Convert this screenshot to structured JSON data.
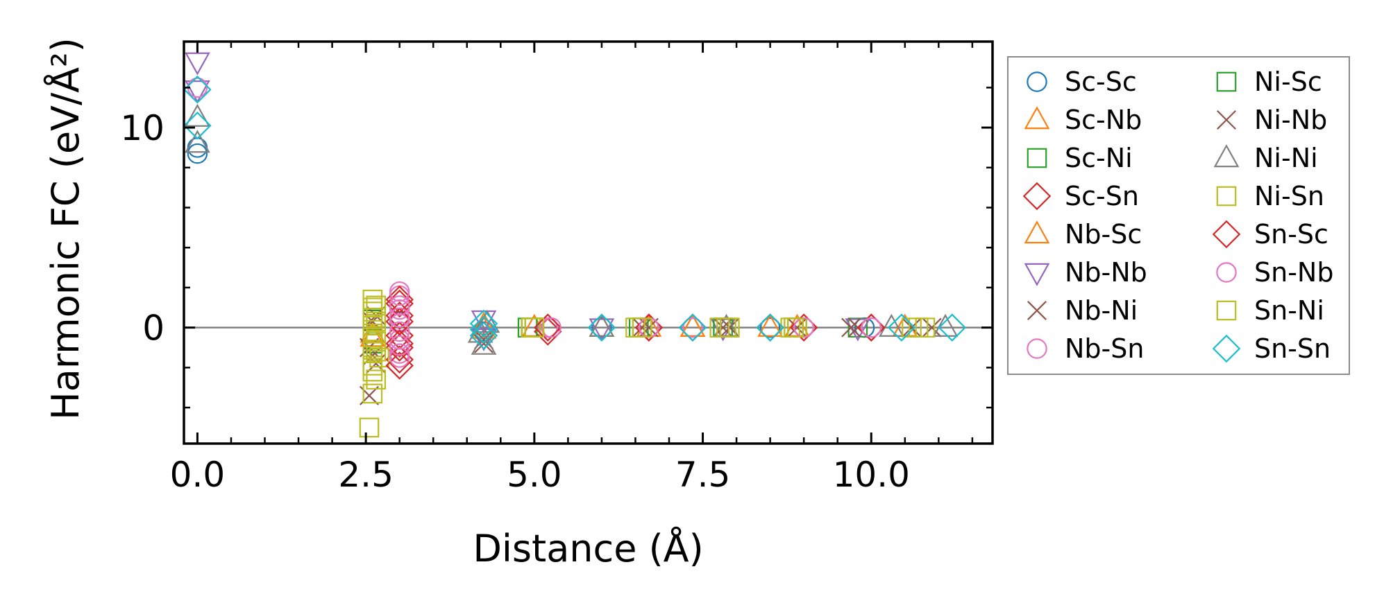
{
  "chart_data": {
    "type": "scatter",
    "title": "",
    "xlabel": "Distance (Å)",
    "ylabel": "Harmonic FC (eV/Å²)",
    "xlim": [
      -0.2,
      11.8
    ],
    "ylim": [
      -5.8,
      14.3
    ],
    "x_ticks": [
      0.0,
      2.5,
      5.0,
      7.5,
      10.0
    ],
    "x_tick_labels": [
      "0.0",
      "2.5",
      "5.0",
      "7.5",
      "10.0"
    ],
    "y_ticks": [
      0,
      10
    ],
    "y_tick_labels": [
      "0",
      "10"
    ],
    "zero_line": 0,
    "grid": false,
    "legend_position": "right",
    "series": [
      {
        "name": "Sc-Sc",
        "marker": "circle",
        "color": "#1f77b4",
        "points": [
          [
            0.0,
            8.7
          ],
          [
            0.0,
            9.0
          ],
          [
            3.0,
            0.3
          ],
          [
            4.25,
            -0.2
          ],
          [
            5.2,
            0.0
          ],
          [
            6.0,
            0.0
          ],
          [
            7.35,
            0.0
          ],
          [
            8.5,
            0.0
          ],
          [
            9.9,
            0.0
          ]
        ]
      },
      {
        "name": "Sc-Nb",
        "marker": "triangle-up",
        "color": "#ff7f0e",
        "points": [
          [
            2.6,
            -0.5
          ],
          [
            4.25,
            -0.1
          ],
          [
            5.0,
            0.0
          ],
          [
            6.7,
            0.0
          ],
          [
            7.35,
            0.0
          ],
          [
            8.9,
            0.0
          ],
          [
            10.5,
            0.0
          ]
        ]
      },
      {
        "name": "Sc-Ni",
        "marker": "square",
        "color": "#2ca02c",
        "points": [
          [
            2.6,
            -0.8
          ],
          [
            2.6,
            0.4
          ],
          [
            4.95,
            0.0
          ],
          [
            5.0,
            0.0
          ],
          [
            6.6,
            0.0
          ],
          [
            7.8,
            0.0
          ],
          [
            8.9,
            0.0
          ],
          [
            9.8,
            0.0
          ]
        ]
      },
      {
        "name": "Sc-Sn",
        "marker": "diamond",
        "color": "#d62728",
        "points": [
          [
            3.0,
            1.2
          ],
          [
            3.0,
            0.6
          ],
          [
            3.0,
            -0.4
          ],
          [
            3.0,
            -1.0
          ],
          [
            3.0,
            -1.6
          ],
          [
            5.2,
            -0.2
          ],
          [
            6.7,
            0.0
          ],
          [
            7.35,
            0.0
          ],
          [
            9.0,
            0.0
          ],
          [
            10.0,
            0.0
          ]
        ]
      },
      {
        "name": "Nb-Sc",
        "marker": "triangle-up",
        "color": "#ff7f0e",
        "points": [
          [
            2.6,
            -0.3
          ],
          [
            4.25,
            0.1
          ],
          [
            6.0,
            0.0
          ],
          [
            7.35,
            0.0
          ],
          [
            8.5,
            0.0
          ],
          [
            10.5,
            0.0
          ]
        ]
      },
      {
        "name": "Nb-Nb",
        "marker": "triangle-down",
        "color": "#9467bd",
        "points": [
          [
            0.0,
            13.3
          ],
          [
            0.0,
            11.9
          ],
          [
            4.25,
            0.4
          ],
          [
            4.25,
            -0.5
          ],
          [
            6.0,
            0.0
          ],
          [
            7.8,
            0.0
          ],
          [
            9.8,
            0.0
          ]
        ]
      },
      {
        "name": "Nb-Ni",
        "marker": "x",
        "color": "#8c564b",
        "points": [
          [
            2.55,
            -3.4
          ],
          [
            2.55,
            -1.0
          ],
          [
            2.65,
            0.6
          ],
          [
            2.65,
            -1.8
          ],
          [
            4.25,
            -0.8
          ],
          [
            6.6,
            0.0
          ],
          [
            7.8,
            0.0
          ],
          [
            8.9,
            0.0
          ],
          [
            9.8,
            0.0
          ],
          [
            10.9,
            0.0
          ]
        ]
      },
      {
        "name": "Nb-Sn",
        "marker": "circle",
        "color": "#e377c2",
        "points": [
          [
            0.0,
            12.0
          ],
          [
            3.0,
            1.6
          ],
          [
            3.0,
            0.9
          ],
          [
            3.0,
            0.2
          ],
          [
            3.0,
            -0.6
          ],
          [
            3.0,
            -1.3
          ],
          [
            5.2,
            0.0
          ],
          [
            6.7,
            0.0
          ],
          [
            7.35,
            0.0
          ],
          [
            9.0,
            0.0
          ],
          [
            10.0,
            0.0
          ]
        ]
      },
      {
        "name": "Ni-Sc",
        "marker": "square",
        "color": "#2ca02c",
        "points": [
          [
            2.6,
            -0.6
          ],
          [
            4.95,
            0.0
          ],
          [
            4.9,
            0.0
          ],
          [
            6.55,
            0.0
          ],
          [
            7.8,
            0.0
          ],
          [
            8.85,
            0.0
          ]
        ]
      },
      {
        "name": "Ni-Nb",
        "marker": "x",
        "color": "#8c564b",
        "points": [
          [
            2.6,
            -1.4
          ],
          [
            2.6,
            0.3
          ],
          [
            4.25,
            -0.6
          ],
          [
            6.7,
            0.0
          ],
          [
            7.9,
            0.0
          ],
          [
            9.7,
            0.0
          ],
          [
            10.6,
            0.0
          ]
        ]
      },
      {
        "name": "Ni-Ni",
        "marker": "triangle-up",
        "color": "#7f7f7f",
        "points": [
          [
            0.0,
            9.2
          ],
          [
            0.0,
            10.5
          ],
          [
            4.2,
            -0.3
          ],
          [
            4.25,
            -0.9
          ],
          [
            4.3,
            0.2
          ],
          [
            6.0,
            0.0
          ],
          [
            7.85,
            0.0
          ],
          [
            10.3,
            0.0
          ],
          [
            11.1,
            0.0
          ]
        ]
      },
      {
        "name": "Ni-Sn",
        "marker": "square",
        "color": "#bcbd22",
        "points": [
          [
            2.55,
            -5.0
          ],
          [
            2.6,
            -3.3
          ],
          [
            2.65,
            -2.6
          ],
          [
            2.6,
            -1.9
          ],
          [
            2.7,
            -1.5
          ],
          [
            2.6,
            -1.1
          ],
          [
            2.65,
            -0.7
          ],
          [
            2.6,
            -0.3
          ],
          [
            2.6,
            0.1
          ],
          [
            2.65,
            0.5
          ],
          [
            2.6,
            0.8
          ],
          [
            2.65,
            1.1
          ],
          [
            2.6,
            1.4
          ],
          [
            4.95,
            0.0
          ],
          [
            5.0,
            0.0
          ],
          [
            6.5,
            0.0
          ],
          [
            6.6,
            0.0
          ],
          [
            7.75,
            0.0
          ],
          [
            7.9,
            0.0
          ],
          [
            8.8,
            0.0
          ],
          [
            8.9,
            0.0
          ],
          [
            10.6,
            0.0
          ],
          [
            10.8,
            0.0
          ]
        ]
      },
      {
        "name": "Sn-Sc",
        "marker": "diamond",
        "color": "#d62728",
        "points": [
          [
            3.0,
            1.4
          ],
          [
            3.0,
            0.3
          ],
          [
            3.0,
            -0.8
          ],
          [
            3.0,
            -1.9
          ],
          [
            5.2,
            0.0
          ],
          [
            6.7,
            0.0
          ],
          [
            8.5,
            0.0
          ],
          [
            10.0,
            0.0
          ]
        ]
      },
      {
        "name": "Sn-Nb",
        "marker": "circle",
        "color": "#e377c2",
        "points": [
          [
            3.0,
            1.8
          ],
          [
            3.0,
            1.1
          ],
          [
            3.0,
            0.5
          ],
          [
            3.0,
            -0.2
          ],
          [
            3.0,
            -0.9
          ],
          [
            3.0,
            -1.5
          ],
          [
            5.25,
            0.0
          ],
          [
            6.7,
            0.0
          ],
          [
            9.0,
            0.0
          ],
          [
            10.0,
            0.0
          ]
        ]
      },
      {
        "name": "Sn-Ni",
        "marker": "square",
        "color": "#bcbd22",
        "points": [
          [
            2.6,
            -2.2
          ],
          [
            2.65,
            -1.2
          ],
          [
            2.6,
            -0.5
          ],
          [
            2.65,
            0.3
          ],
          [
            2.6,
            1.0
          ],
          [
            5.0,
            0.0
          ],
          [
            6.6,
            0.0
          ],
          [
            7.85,
            0.0
          ],
          [
            8.85,
            0.0
          ],
          [
            10.7,
            0.0
          ]
        ]
      },
      {
        "name": "Sn-Sn",
        "marker": "diamond",
        "color": "#17becf",
        "points": [
          [
            0.0,
            11.9
          ],
          [
            0.0,
            10.1
          ],
          [
            4.25,
            0.2
          ],
          [
            4.25,
            -0.1
          ],
          [
            4.25,
            -0.4
          ],
          [
            6.0,
            0.0
          ],
          [
            7.35,
            0.0
          ],
          [
            8.5,
            0.0
          ],
          [
            10.45,
            0.0
          ],
          [
            11.2,
            0.0
          ]
        ]
      }
    ]
  }
}
